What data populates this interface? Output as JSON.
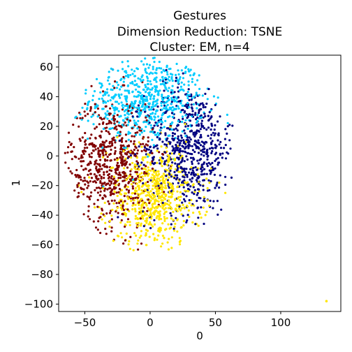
{
  "chart_data": {
    "type": "scatter",
    "title_lines": [
      "Gestures",
      "Dimension Reduction: TSNE",
      "Cluster: EM, n=4"
    ],
    "xlabel": "0",
    "ylabel": "1",
    "xlim": [
      -70,
      146
    ],
    "ylim": [
      -105,
      68
    ],
    "xticks": [
      -50,
      0,
      50,
      100
    ],
    "yticks": [
      -100,
      -80,
      -60,
      -40,
      -20,
      0,
      20,
      40,
      60
    ],
    "grid": false,
    "point_count_per_cluster_estimate": 650,
    "clusters": [
      {
        "color": "#00ccff",
        "region": "top",
        "center": [
          -2,
          38
        ],
        "spread": [
          22,
          14
        ]
      },
      {
        "color": "#000080",
        "region": "right",
        "center": [
          30,
          5
        ],
        "spread": [
          17,
          22
        ]
      },
      {
        "color": "#800000",
        "region": "left",
        "center": [
          -30,
          -5
        ],
        "spread": [
          16,
          22
        ]
      },
      {
        "color": "#ffe600",
        "region": "bottom",
        "center": [
          3,
          -28
        ],
        "spread": [
          18,
          17
        ]
      }
    ],
    "outliers": [
      {
        "x": 135,
        "y": -98,
        "color": "#ffe600"
      }
    ]
  }
}
